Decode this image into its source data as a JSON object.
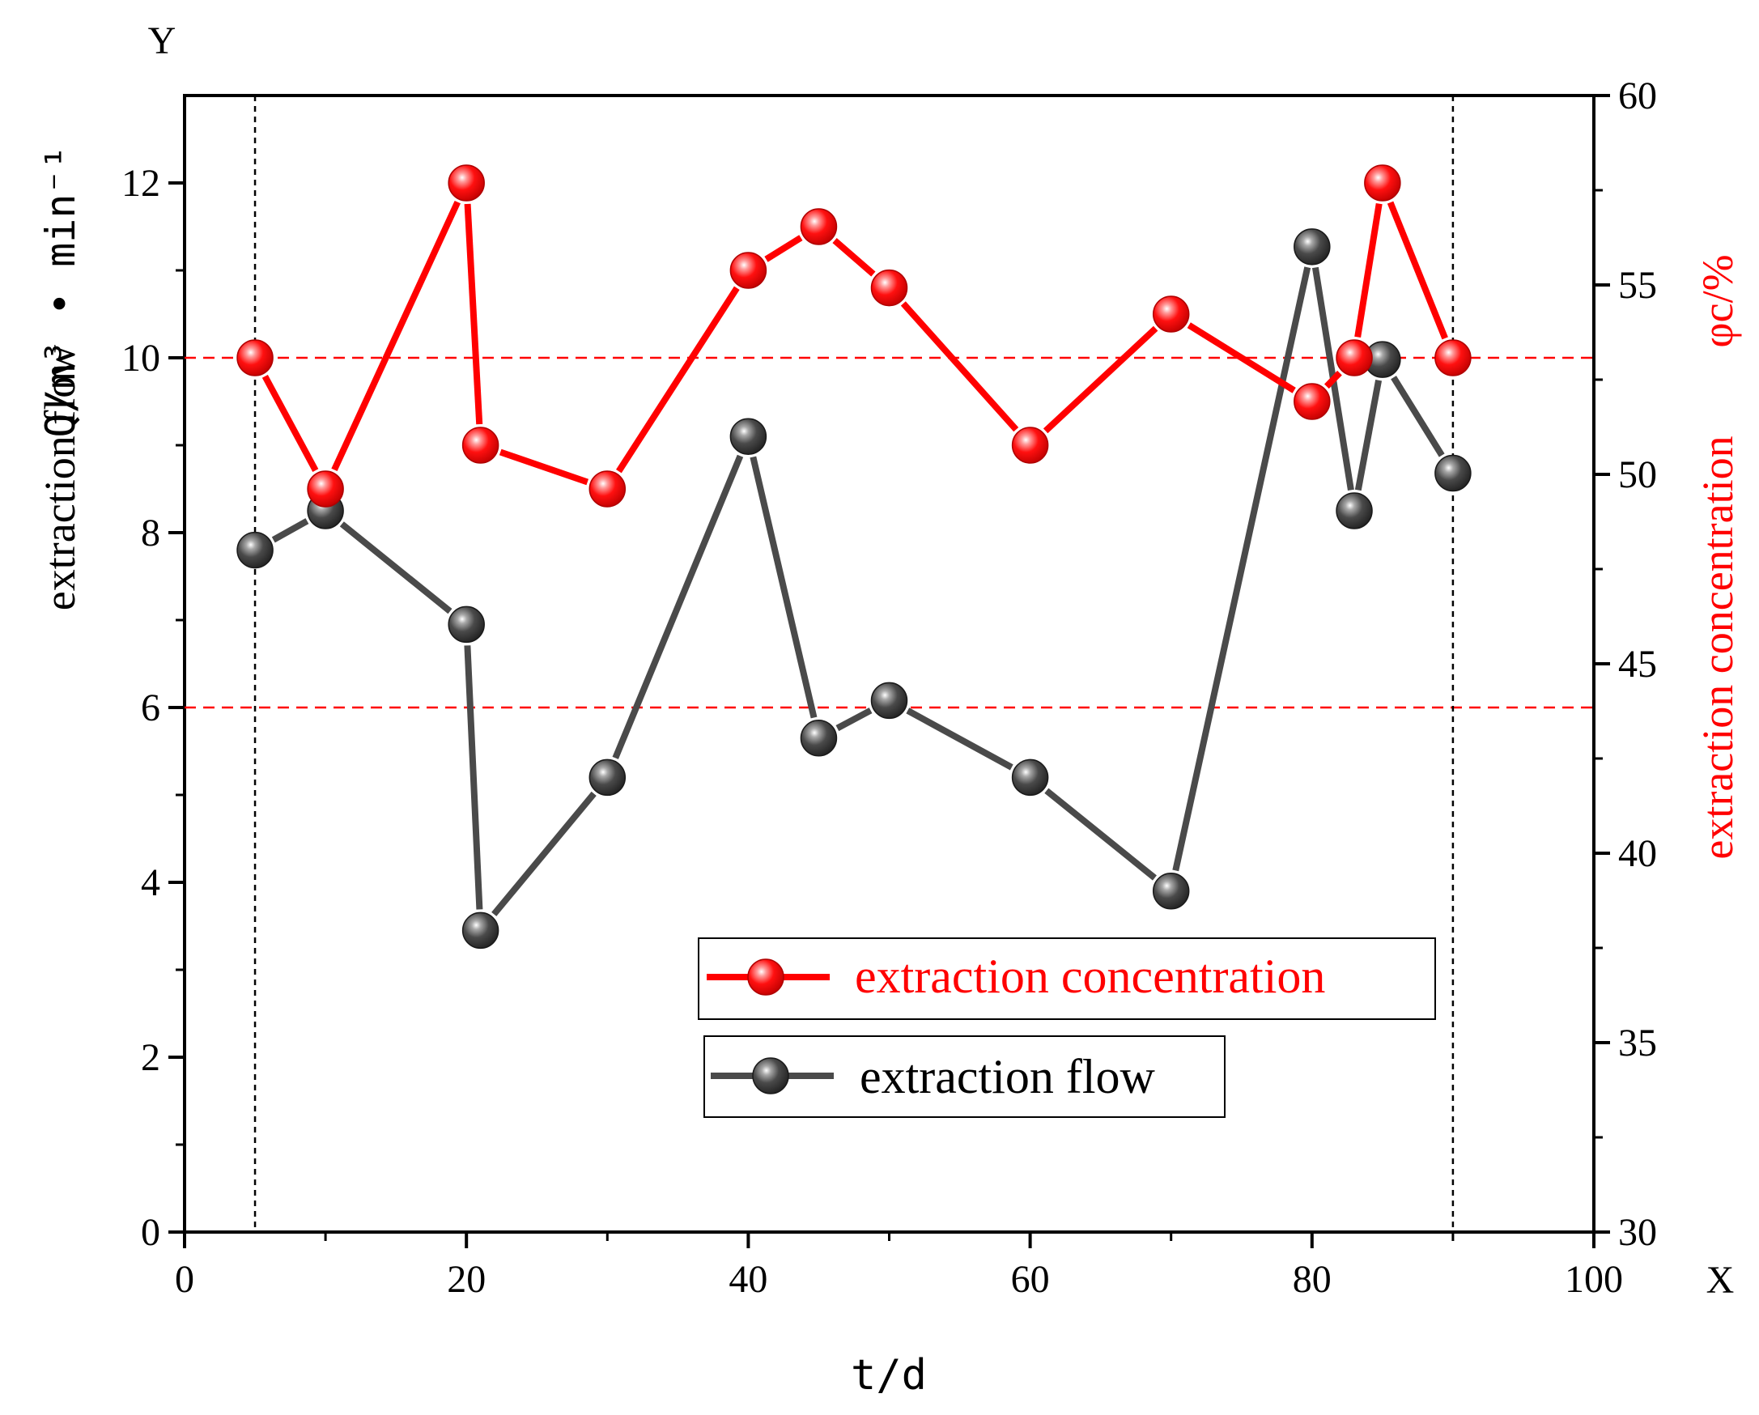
{
  "chart_data": {
    "type": "line",
    "x_label": "t/d",
    "x_corner_label": "X",
    "y_corner_label": "Y",
    "y_left_label_text": "extraction flow",
    "y_left_label_unit": "Q/m³ • min⁻¹",
    "y_right_label_text": "extraction concentration",
    "y_right_label_unit": "φc/%",
    "xlim": [
      0,
      100
    ],
    "ylim_left": [
      0,
      13
    ],
    "ylim_right": [
      30,
      60
    ],
    "x_ticks": [
      "0",
      "20",
      "40",
      "60",
      "80",
      "100"
    ],
    "y_left_ticks": [
      "0",
      "2",
      "4",
      "6",
      "8",
      "10",
      "12"
    ],
    "y_right_ticks": [
      "30",
      "35",
      "40",
      "45",
      "50",
      "55",
      "60"
    ],
    "reference_lines": {
      "horizontal_left_axis": [
        10,
        6
      ],
      "vertical": [
        5,
        90
      ]
    },
    "series": [
      {
        "name": "extraction concentration",
        "axis": "left",
        "color": "#ff0000",
        "x": [
          5,
          10,
          20,
          21,
          30,
          40,
          45,
          50,
          60,
          70,
          80,
          83,
          85,
          90
        ],
        "y": [
          10,
          8.5,
          12,
          9,
          8.5,
          11,
          11.5,
          10.8,
          9,
          10.5,
          9.5,
          10,
          12,
          10
        ]
      },
      {
        "name": "extraction flow",
        "axis": "left",
        "color": "#4a4a4a",
        "x": [
          5,
          10,
          20,
          21,
          30,
          40,
          45,
          50,
          60,
          70,
          80,
          83,
          85,
          90
        ],
        "y": [
          7.8,
          8.25,
          6.95,
          3.45,
          5.2,
          9.1,
          5.65,
          6.08,
          5.2,
          3.9,
          11.27,
          8.25,
          9.98,
          8.68
        ]
      }
    ],
    "legend": {
      "position": "lower-center-right",
      "entries": [
        "extraction concentration",
        "extraction flow"
      ]
    }
  }
}
